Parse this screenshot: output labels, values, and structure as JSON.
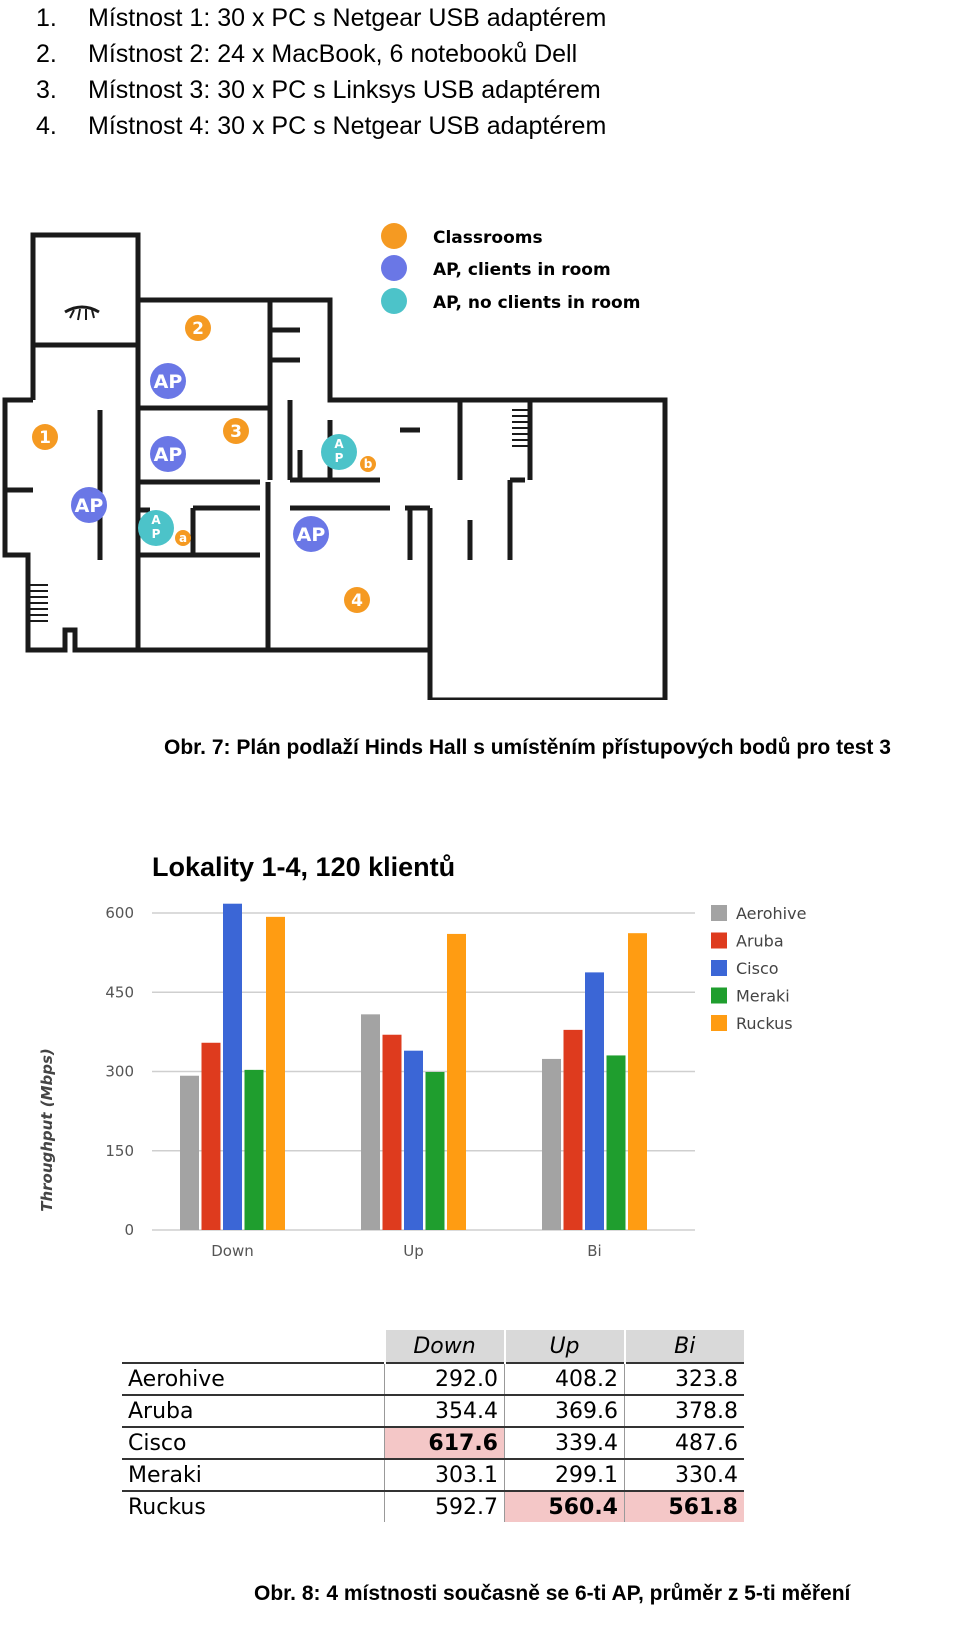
{
  "list": [
    {
      "num": "1.",
      "text": "Místnost 1: 30 x  PC s Netgear USB adaptérem"
    },
    {
      "num": "2.",
      "text": "Místnost 2: 24 x MacBook, 6 notebooků Dell"
    },
    {
      "num": "3.",
      "text": "Místnost 3: 30 x PC s Linksys USB adaptérem"
    },
    {
      "num": "4.",
      "text": "Místnost 4: 30 x PC s Netgear USB adaptérem"
    }
  ],
  "floorplan": {
    "legend": [
      "Classrooms",
      "AP, clients in room",
      "AP, no clients in room"
    ],
    "colors": {
      "classroom": "#f59a22",
      "ap_clients": "#6a77e6",
      "ap_noclients": "#4cc3c9",
      "wall": "#1a1a1a"
    },
    "room_labels": [
      "1",
      "2",
      "3",
      "4"
    ],
    "ap_label": "AP",
    "ap_small": [
      "A",
      "P"
    ],
    "ap_tags": [
      "a",
      "b"
    ]
  },
  "caption1": "Obr. 7: Plán podlaží Hinds Hall s umístěním přístupových bodů pro test 3",
  "chart_title": "Lokality 1-4, 120 klientů",
  "chart_data": {
    "type": "bar",
    "categories": [
      "Down",
      "Up",
      "Bi"
    ],
    "series": [
      {
        "name": "Aerohive",
        "color": "#a3a3a3",
        "values": [
          292.0,
          408.2,
          323.8
        ]
      },
      {
        "name": "Aruba",
        "color": "#de3b1e",
        "values": [
          354.4,
          369.6,
          378.8
        ]
      },
      {
        "name": "Cisco",
        "color": "#3b66d6",
        "values": [
          617.6,
          339.4,
          487.6
        ]
      },
      {
        "name": "Meraki",
        "color": "#1f9e2e",
        "values": [
          303.1,
          299.1,
          330.4
        ]
      },
      {
        "name": "Ruckus",
        "color": "#ff9c12",
        "values": [
          592.7,
          560.4,
          561.8
        ]
      }
    ],
    "ylabel": "Throughput (Mbps)",
    "yticks": [
      "0",
      "150",
      "300",
      "450",
      "600"
    ],
    "ylim": [
      0,
      600
    ],
    "grid": true,
    "legend": "right"
  },
  "table": {
    "headers": [
      "Down",
      "Up",
      "Bi"
    ],
    "rows": [
      {
        "name": "Aerohive",
        "values": [
          "292.0",
          "408.2",
          "323.8"
        ],
        "highlight": [
          false,
          false,
          false
        ]
      },
      {
        "name": "Aruba",
        "values": [
          "354.4",
          "369.6",
          "378.8"
        ],
        "highlight": [
          false,
          false,
          false
        ]
      },
      {
        "name": "Cisco",
        "values": [
          "617.6",
          "339.4",
          "487.6"
        ],
        "highlight": [
          true,
          false,
          false
        ]
      },
      {
        "name": "Meraki",
        "values": [
          "303.1",
          "299.1",
          "330.4"
        ],
        "highlight": [
          false,
          false,
          false
        ]
      },
      {
        "name": "Ruckus",
        "values": [
          "592.7",
          "560.4",
          "561.8"
        ],
        "highlight": [
          false,
          true,
          true
        ]
      }
    ]
  },
  "caption2": "Obr. 8: 4 místnosti současně se 6-ti AP, průměr z 5-ti měření"
}
